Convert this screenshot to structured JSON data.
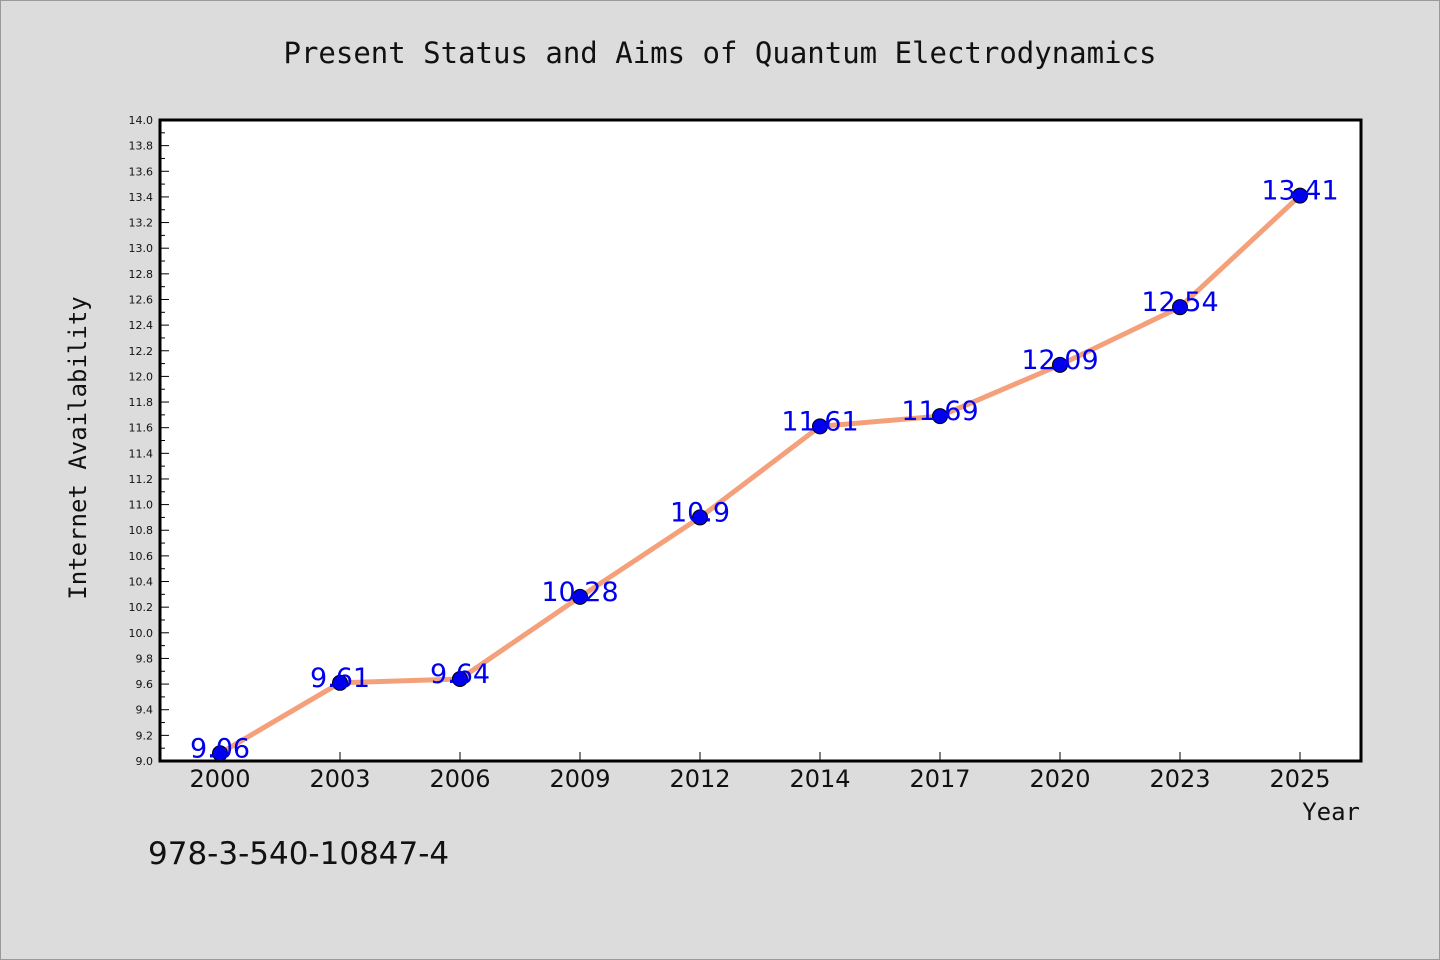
{
  "chart_data": {
    "type": "line",
    "title": "Present Status and Aims of Quantum Electrodynamics",
    "xlabel": "Year",
    "ylabel": "Internet Availability",
    "categories": [
      "2000",
      "2003",
      "2006",
      "2009",
      "2012",
      "2014",
      "2017",
      "2020",
      "2023",
      "2025"
    ],
    "values": [
      9.06,
      9.61,
      9.64,
      10.28,
      10.9,
      11.61,
      11.69,
      12.09,
      12.54,
      13.41
    ],
    "data_labels": [
      "9.06",
      "9.61",
      "9.64",
      "10.28",
      "10.9",
      "11.61",
      "11.69",
      "12.09",
      "12.54",
      "13.41"
    ],
    "ylim": [
      9.0,
      14.0
    ],
    "y_ticks": [
      "9.0",
      "9.2",
      "9.4",
      "9.6",
      "9.8",
      "10.0",
      "10.2",
      "10.4",
      "10.6",
      "10.8",
      "11.0",
      "11.2",
      "11.4",
      "11.6",
      "11.8",
      "12.0",
      "12.2",
      "12.4",
      "12.6",
      "12.8",
      "13.0",
      "13.2",
      "13.4",
      "13.6",
      "13.8",
      "14.0"
    ],
    "y_tick_values": [
      9.0,
      9.2,
      9.4,
      9.6,
      9.8,
      10.0,
      10.2,
      10.4,
      10.6,
      10.8,
      11.0,
      11.2,
      11.4,
      11.6,
      11.8,
      12.0,
      12.2,
      12.4,
      12.6,
      12.8,
      13.0,
      13.2,
      13.4,
      13.6,
      13.8,
      14.0
    ],
    "grid": false,
    "legend": "none",
    "line_color": "#f4a07a",
    "marker_color": "#0000ee",
    "label_color": "#0000ee",
    "background": "#dcdcdc",
    "plot_background": "#ffffff"
  },
  "footer": {
    "isbn": "978-3-540-10847-4"
  }
}
